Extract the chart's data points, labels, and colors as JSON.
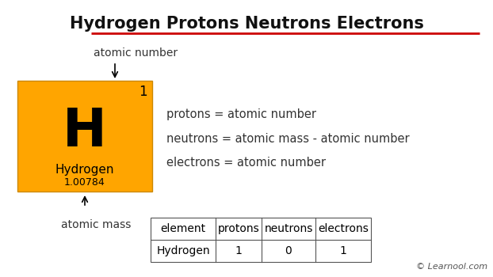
{
  "title": "Hydrogen Protons Neutrons Electrons",
  "title_fontsize": 15,
  "title_color": "#111111",
  "underline_color": "#cc0000",
  "bg_color": "#ffffff",
  "element_bg": "#FFA500",
  "element_symbol": "H",
  "element_name": "Hydrogen",
  "element_atomic_number": "1",
  "element_atomic_mass": "1.00784",
  "label_atomic_number": "atomic number",
  "label_atomic_mass": "atomic mass",
  "formula_protons": "protons = atomic number",
  "formula_neutrons": "neutrons = atomic mass - atomic number",
  "formula_electrons": "electrons = atomic number",
  "table_headers": [
    "element",
    "protons",
    "neutrons",
    "electrons"
  ],
  "table_row": [
    "Hydrogen",
    "1",
    "0",
    "1"
  ],
  "watermark": "© Learnool.com",
  "formula_fontsize": 10.5,
  "label_fontsize": 10,
  "table_fontsize": 10
}
